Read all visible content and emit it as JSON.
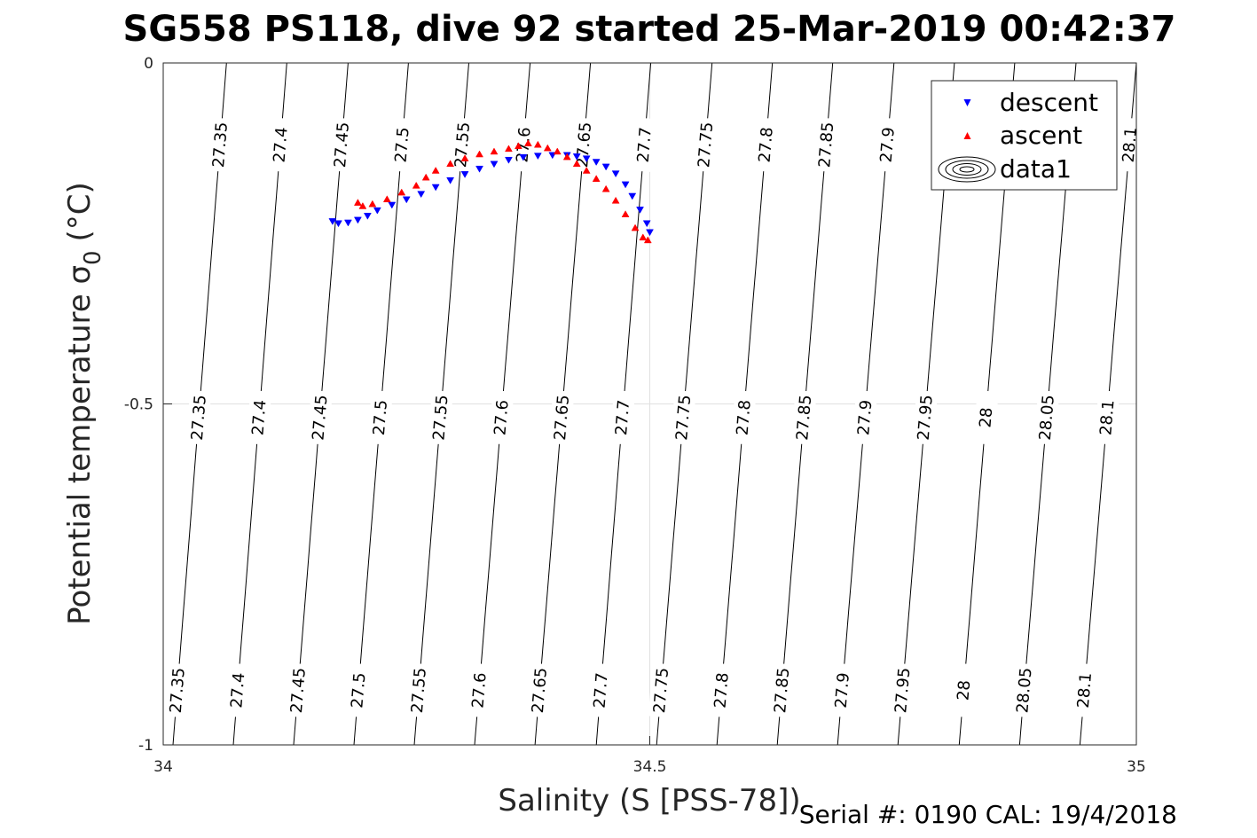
{
  "chart_data": {
    "type": "scatter",
    "title": "SG558 PS118, dive 92 started 25-Mar-2019 00:42:37",
    "xlabel": "Salinity (S [PSS-78])",
    "ylabel": "Potential temperature σ₀ (°C)",
    "ylabel_main": "Potential temperature σ",
    "ylabel_sub": "0",
    "ylabel_unit": "(°C)",
    "footer": "Serial #: 0190  CAL: 19/4/2018",
    "xlim": [
      34,
      35
    ],
    "ylim": [
      -1,
      0
    ],
    "x_ticks": [
      {
        "value": 34,
        "label": "34"
      },
      {
        "value": 34.5,
        "label": "34.5"
      },
      {
        "value": 35,
        "label": "35"
      }
    ],
    "y_ticks": [
      {
        "value": 0,
        "label": "0"
      },
      {
        "value": -0.5,
        "label": "-0.5"
      },
      {
        "value": -1,
        "label": "-1"
      }
    ],
    "grid": true,
    "legend_position": "top-right",
    "series": [
      {
        "name": "descent",
        "color": "#0000ff",
        "marker": "triangle-down",
        "points": [
          [
            34.174,
            -0.232
          ],
          [
            34.18,
            -0.235
          ],
          [
            34.19,
            -0.234
          ],
          [
            34.2,
            -0.23
          ],
          [
            34.21,
            -0.224
          ],
          [
            34.22,
            -0.216
          ],
          [
            34.235,
            -0.208
          ],
          [
            34.25,
            -0.2
          ],
          [
            34.265,
            -0.192
          ],
          [
            34.28,
            -0.182
          ],
          [
            34.295,
            -0.172
          ],
          [
            34.31,
            -0.163
          ],
          [
            34.325,
            -0.155
          ],
          [
            34.34,
            -0.148
          ],
          [
            34.355,
            -0.142
          ],
          [
            34.37,
            -0.138
          ],
          [
            34.385,
            -0.136
          ],
          [
            34.4,
            -0.135
          ],
          [
            34.415,
            -0.135
          ],
          [
            34.425,
            -0.137
          ],
          [
            34.435,
            -0.14
          ],
          [
            34.445,
            -0.145
          ],
          [
            34.455,
            -0.152
          ],
          [
            34.465,
            -0.162
          ],
          [
            34.475,
            -0.178
          ],
          [
            34.482,
            -0.195
          ],
          [
            34.49,
            -0.215
          ],
          [
            34.497,
            -0.235
          ],
          [
            34.5,
            -0.248
          ]
        ]
      },
      {
        "name": "ascent",
        "color": "#ff0000",
        "marker": "triangle-up",
        "points": [
          [
            34.2,
            -0.205
          ],
          [
            34.205,
            -0.21
          ],
          [
            34.215,
            -0.207
          ],
          [
            34.23,
            -0.2
          ],
          [
            34.245,
            -0.19
          ],
          [
            34.26,
            -0.18
          ],
          [
            34.27,
            -0.168
          ],
          [
            34.28,
            -0.158
          ],
          [
            34.295,
            -0.148
          ],
          [
            34.31,
            -0.14
          ],
          [
            34.325,
            -0.134
          ],
          [
            34.34,
            -0.13
          ],
          [
            34.355,
            -0.126
          ],
          [
            34.365,
            -0.122
          ],
          [
            34.375,
            -0.118
          ],
          [
            34.385,
            -0.12
          ],
          [
            34.395,
            -0.125
          ],
          [
            34.405,
            -0.13
          ],
          [
            34.415,
            -0.138
          ],
          [
            34.425,
            -0.148
          ],
          [
            34.435,
            -0.158
          ],
          [
            34.445,
            -0.17
          ],
          [
            34.455,
            -0.185
          ],
          [
            34.465,
            -0.202
          ],
          [
            34.475,
            -0.222
          ],
          [
            34.485,
            -0.242
          ],
          [
            34.493,
            -0.256
          ],
          [
            34.498,
            -0.26
          ]
        ]
      }
    ],
    "legend": [
      {
        "label": "descent",
        "marker": "triangle-down",
        "color": "#0000ff"
      },
      {
        "label": "ascent",
        "marker": "triangle-up",
        "color": "#ff0000"
      },
      {
        "label": "data1",
        "marker": "contour-rings",
        "color": "#000000"
      }
    ],
    "contour_series_name": "data1",
    "isopycnals": [
      {
        "value": 27.35,
        "x_at_top": 34.065,
        "x_at_bottom": 34.01,
        "labels": [
          {
            "text": "27.35",
            "y": -0.12
          },
          {
            "text": "27.35",
            "y": -0.52
          },
          {
            "text": "27.35",
            "y": -0.92
          }
        ]
      },
      {
        "value": 27.4,
        "x_at_top": 34.127,
        "x_at_bottom": 34.072,
        "labels": [
          {
            "text": "27.4",
            "y": -0.12
          },
          {
            "text": "27.4",
            "y": -0.52
          },
          {
            "text": "27.4",
            "y": -0.92
          }
        ]
      },
      {
        "value": 27.45,
        "x_at_top": 34.19,
        "x_at_bottom": 34.134,
        "labels": [
          {
            "text": "27.45",
            "y": -0.12
          },
          {
            "text": "27.45",
            "y": -0.52
          },
          {
            "text": "27.45",
            "y": -0.92
          }
        ]
      },
      {
        "value": 27.5,
        "x_at_top": 34.252,
        "x_at_bottom": 34.196,
        "labels": [
          {
            "text": "27.5",
            "y": -0.12
          },
          {
            "text": "27.5",
            "y": -0.52
          },
          {
            "text": "27.5",
            "y": -0.92
          }
        ]
      },
      {
        "value": 27.55,
        "x_at_top": 34.314,
        "x_at_bottom": 34.258,
        "labels": [
          {
            "text": "27.55",
            "y": -0.12
          },
          {
            "text": "27.55",
            "y": -0.52
          },
          {
            "text": "27.55",
            "y": -0.92
          }
        ]
      },
      {
        "value": 27.6,
        "x_at_top": 34.377,
        "x_at_bottom": 34.32,
        "labels": [
          {
            "text": "27.6",
            "y": -0.12
          },
          {
            "text": "27.6",
            "y": -0.52
          },
          {
            "text": "27.6",
            "y": -0.92
          }
        ]
      },
      {
        "value": 27.65,
        "x_at_top": 34.439,
        "x_at_bottom": 34.382,
        "labels": [
          {
            "text": "27.65",
            "y": -0.12
          },
          {
            "text": "27.65",
            "y": -0.52
          },
          {
            "text": "27.65",
            "y": -0.92
          }
        ]
      },
      {
        "value": 27.7,
        "x_at_top": 34.501,
        "x_at_bottom": 34.445,
        "labels": [
          {
            "text": "27.7",
            "y": -0.12
          },
          {
            "text": "27.7",
            "y": -0.52
          },
          {
            "text": "27.7",
            "y": -0.92
          }
        ]
      },
      {
        "value": 27.75,
        "x_at_top": 34.564,
        "x_at_bottom": 34.507,
        "labels": [
          {
            "text": "27.75",
            "y": -0.12
          },
          {
            "text": "27.75",
            "y": -0.52
          },
          {
            "text": "27.75",
            "y": -0.92
          }
        ]
      },
      {
        "value": 27.8,
        "x_at_top": 34.626,
        "x_at_bottom": 34.569,
        "labels": [
          {
            "text": "27.8",
            "y": -0.12
          },
          {
            "text": "27.8",
            "y": -0.52
          },
          {
            "text": "27.8",
            "y": -0.92
          }
        ]
      },
      {
        "value": 27.85,
        "x_at_top": 34.688,
        "x_at_bottom": 34.631,
        "labels": [
          {
            "text": "27.85",
            "y": -0.12
          },
          {
            "text": "27.85",
            "y": -0.52
          },
          {
            "text": "27.85",
            "y": -0.92
          }
        ]
      },
      {
        "value": 27.9,
        "x_at_top": 34.751,
        "x_at_bottom": 34.693,
        "labels": [
          {
            "text": "27.9",
            "y": -0.12
          },
          {
            "text": "27.9",
            "y": -0.52
          },
          {
            "text": "27.9",
            "y": -0.92
          }
        ]
      },
      {
        "value": 27.95,
        "x_at_top": 34.813,
        "x_at_bottom": 34.755,
        "labels": [
          {
            "text": "27.95",
            "y": -0.52
          },
          {
            "text": "27.95",
            "y": -0.92
          }
        ]
      },
      {
        "value": 28.0,
        "x_at_top": 34.875,
        "x_at_bottom": 34.818,
        "labels": [
          {
            "text": "28",
            "y": -0.52
          },
          {
            "text": "28",
            "y": -0.92
          }
        ]
      },
      {
        "value": 28.05,
        "x_at_top": 34.938,
        "x_at_bottom": 34.88,
        "labels": [
          {
            "text": "28.05",
            "y": -0.52
          },
          {
            "text": "28.05",
            "y": -0.92
          }
        ]
      },
      {
        "value": 28.1,
        "x_at_top": 35.0,
        "x_at_bottom": 34.942,
        "labels": [
          {
            "text": "28.1",
            "y": -0.12
          },
          {
            "text": "28.1",
            "y": -0.52
          },
          {
            "text": "28.1",
            "y": -0.92
          }
        ]
      }
    ]
  }
}
